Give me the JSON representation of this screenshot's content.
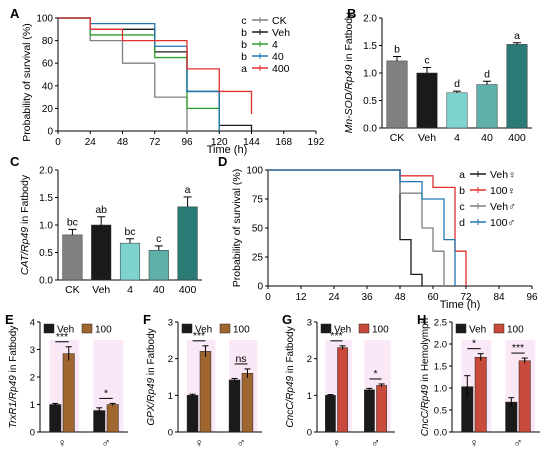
{
  "colors": {
    "gray": "#808080",
    "black": "#1a1a1a",
    "green": "#2ca02c",
    "blue": "#1f77b4",
    "red": "#e03030",
    "teal_light": "#7fd3cf",
    "teal_mid": "#5fb0a8",
    "teal_dark": "#2a7a75",
    "brown": "#a0662f",
    "brick": "#c84a3a",
    "shade": "#f6d6ef"
  },
  "chart_data": [
    {
      "panel": "A",
      "type": "line",
      "step": true,
      "xlabel": "Time (h)",
      "ylabel": "Probability of survival (%)",
      "xlim": [
        0,
        192
      ],
      "ylim": [
        0,
        100
      ],
      "xticks": [
        "0",
        "24",
        "48",
        "72",
        "96",
        "120",
        "144",
        "168",
        "192"
      ],
      "yticks": [
        "0",
        "20",
        "40",
        "60",
        "80",
        "100"
      ],
      "legend_position": "top-right",
      "series": [
        {
          "name": "CK",
          "letter": "c",
          "color_key": "gray",
          "x": [
            0,
            24,
            48,
            72,
            96
          ],
          "y": [
            100,
            80,
            60,
            30,
            0
          ]
        },
        {
          "name": "Veh",
          "letter": "b",
          "color_key": "black",
          "x": [
            0,
            24,
            72,
            96,
            120,
            144
          ],
          "y": [
            100,
            90,
            70,
            35,
            5,
            0
          ]
        },
        {
          "name": "4",
          "letter": "b",
          "color_key": "green",
          "x": [
            0,
            24,
            72,
            96,
            120
          ],
          "y": [
            100,
            85,
            65,
            20,
            0
          ]
        },
        {
          "name": "40",
          "letter": "b",
          "color_key": "blue",
          "x": [
            0,
            24,
            72,
            96,
            120
          ],
          "y": [
            100,
            95,
            75,
            35,
            0
          ]
        },
        {
          "name": "400",
          "letter": "a",
          "color_key": "red",
          "x": [
            0,
            24,
            48,
            96,
            120,
            144
          ],
          "y": [
            100,
            90,
            80,
            55,
            35,
            15
          ]
        }
      ]
    },
    {
      "panel": "B",
      "type": "bar",
      "ylabel_italic": "Mn-SOD/Rp49",
      "ylabel_rest": " in Fatbody",
      "ylim": [
        0,
        2.0
      ],
      "yticks": [
        "0.0",
        "0.5",
        "1.0",
        "1.5",
        "2.0"
      ],
      "categories": [
        "CK",
        "Veh",
        "4",
        "40",
        "400"
      ],
      "values": [
        1.22,
        1.0,
        0.64,
        0.79,
        1.52
      ],
      "errors": [
        0.08,
        0.1,
        0.03,
        0.06,
        0.03
      ],
      "letters": [
        "b",
        "c",
        "d",
        "d",
        "a"
      ],
      "color_keys": [
        "gray",
        "black",
        "teal_light",
        "teal_mid",
        "teal_dark"
      ]
    },
    {
      "panel": "C",
      "type": "bar",
      "ylabel_italic": "CAT/Rp49",
      "ylabel_rest": " in Fatbody",
      "ylim": [
        0,
        2.0
      ],
      "yticks": [
        "0.0",
        "0.5",
        "1.0",
        "1.5",
        "2.0"
      ],
      "categories": [
        "CK",
        "Veh",
        "4",
        "40",
        "400"
      ],
      "values": [
        0.82,
        1.0,
        0.67,
        0.54,
        1.33
      ],
      "errors": [
        0.1,
        0.15,
        0.08,
        0.08,
        0.18
      ],
      "letters": [
        "bc",
        "ab",
        "bc",
        "c",
        "a"
      ],
      "color_keys": [
        "gray",
        "black",
        "teal_light",
        "teal_mid",
        "teal_dark"
      ]
    },
    {
      "panel": "D",
      "type": "line",
      "step": true,
      "xlabel": "Time (h)",
      "ylabel": "Probability of survival (%)",
      "xlim": [
        0,
        96
      ],
      "ylim": [
        0,
        100
      ],
      "xticks": [
        "0",
        "12",
        "24",
        "36",
        "48",
        "60",
        "72",
        "84",
        "96"
      ],
      "yticks": [
        "0",
        "25",
        "50",
        "75",
        "100"
      ],
      "legend_position": "right",
      "series": [
        {
          "name": "Veh♀",
          "letter": "a",
          "color_key": "black",
          "x": [
            0,
            48,
            52,
            56
          ],
          "y": [
            100,
            40,
            10,
            0
          ]
        },
        {
          "name": "100♀",
          "letter": "b",
          "color_key": "red",
          "x": [
            0,
            48,
            60,
            68,
            72
          ],
          "y": [
            100,
            95,
            85,
            30,
            0
          ]
        },
        {
          "name": "Veh♂",
          "letter": "c",
          "color_key": "gray",
          "x": [
            0,
            48,
            56,
            60,
            64
          ],
          "y": [
            100,
            80,
            50,
            30,
            0
          ]
        },
        {
          "name": "100♂",
          "letter": "d",
          "color_key": "blue",
          "x": [
            0,
            48,
            56,
            64,
            68
          ],
          "y": [
            100,
            90,
            75,
            40,
            0
          ]
        }
      ]
    },
    {
      "panel": "E",
      "type": "bar",
      "grouped": true,
      "ylabel_italic": "TrxR1/Rp49",
      "ylabel_rest": " in Fatbody",
      "ylim": [
        0,
        4
      ],
      "yticks": [
        "0",
        "1",
        "2",
        "3",
        "4"
      ],
      "categories": [
        "♀",
        "♂"
      ],
      "legend": [
        "Veh",
        "100"
      ],
      "series": [
        {
          "name": "Veh",
          "values": [
            1.0,
            0.78
          ],
          "errors": [
            0.04,
            0.1
          ]
        },
        {
          "name": "100",
          "values": [
            2.85,
            1.0
          ],
          "errors": [
            0.25,
            0.04
          ]
        }
      ],
      "color_keys": [
        "black",
        "brown"
      ],
      "sig": [
        "***",
        "*"
      ]
    },
    {
      "panel": "F",
      "type": "bar",
      "grouped": true,
      "ylabel_italic": "GPX/Rp49",
      "ylabel_rest": " in Fatbody",
      "ylim": [
        0,
        3
      ],
      "yticks": [
        "0",
        "1",
        "2",
        "3"
      ],
      "categories": [
        "♀",
        "♂"
      ],
      "legend": [
        "Veh",
        "100"
      ],
      "series": [
        {
          "name": "Veh",
          "values": [
            1.0,
            1.42
          ],
          "errors": [
            0.03,
            0.04
          ]
        },
        {
          "name": "100",
          "values": [
            2.2,
            1.6
          ],
          "errors": [
            0.15,
            0.12
          ]
        }
      ],
      "color_keys": [
        "black",
        "brown"
      ],
      "sig": [
        "***",
        "ns"
      ]
    },
    {
      "panel": "G",
      "type": "bar",
      "grouped": true,
      "ylabel_italic": "CncC/Rp49",
      "ylabel_rest": " in Fatbody",
      "ylim": [
        0,
        3
      ],
      "yticks": [
        "0",
        "1",
        "2",
        "3"
      ],
      "categories": [
        "♀",
        "♂"
      ],
      "legend": [
        "Veh",
        "100"
      ],
      "series": [
        {
          "name": "Veh",
          "values": [
            1.0,
            1.15
          ],
          "errors": [
            0.02,
            0.04
          ]
        },
        {
          "name": "100",
          "values": [
            2.3,
            1.27
          ],
          "errors": [
            0.05,
            0.04
          ]
        }
      ],
      "color_keys": [
        "black",
        "brick"
      ],
      "sig": [
        "***",
        "*"
      ]
    },
    {
      "panel": "H",
      "type": "bar",
      "grouped": true,
      "ylabel_italic": "CncC/Rp49",
      "ylabel_rest": " in Hemolymph",
      "ylim": [
        0,
        2.5
      ],
      "yticks": [
        "0.0",
        "0.5",
        "1.0",
        "1.5",
        "2.0",
        "2.5"
      ],
      "categories": [
        "♀",
        "♂"
      ],
      "legend": [
        "Veh",
        "100"
      ],
      "series": [
        {
          "name": "Veh",
          "values": [
            1.03,
            0.68
          ],
          "errors": [
            0.25,
            0.1
          ]
        },
        {
          "name": "100",
          "values": [
            1.7,
            1.62
          ],
          "errors": [
            0.08,
            0.06
          ]
        }
      ],
      "color_keys": [
        "black",
        "brick"
      ],
      "sig": [
        "*",
        "***"
      ]
    }
  ]
}
